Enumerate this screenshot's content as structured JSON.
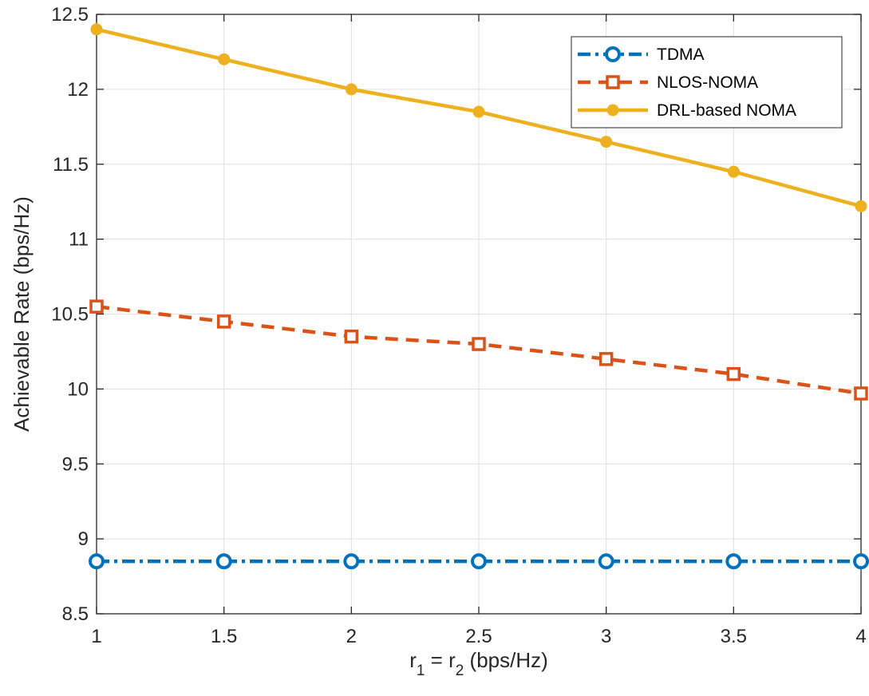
{
  "chart_data": {
    "type": "line",
    "x": [
      1,
      1.5,
      2,
      2.5,
      3,
      3.5,
      4
    ],
    "series": [
      {
        "name": "TDMA",
        "values": [
          8.85,
          8.85,
          8.85,
          8.85,
          8.85,
          8.85,
          8.85
        ],
        "color": "#0072BD",
        "line": "dashdot",
        "marker": "circle"
      },
      {
        "name": "NLOS-NOMA",
        "values": [
          10.55,
          10.45,
          10.35,
          10.3,
          10.2,
          10.1,
          9.97
        ],
        "color": "#D95319",
        "line": "dashed",
        "marker": "square"
      },
      {
        "name": "DRL-based NOMA",
        "values": [
          12.4,
          12.2,
          12.0,
          11.85,
          11.65,
          11.45,
          11.22
        ],
        "color": "#EDB120",
        "line": "solid",
        "marker": "filled-circle"
      }
    ],
    "xlabel": {
      "main": "r",
      "sub1": "1",
      "mid": " = r",
      "sub2": "2",
      "tail": " (bps/Hz)"
    },
    "ylabel": "Achievable Rate (bps/Hz)",
    "xlim": [
      1,
      4
    ],
    "ylim": [
      8.5,
      12.5
    ],
    "xticks": [
      "1",
      "1.5",
      "2",
      "2.5",
      "3",
      "3.5",
      "4"
    ],
    "yticks": [
      "8.5",
      "9",
      "9.5",
      "10",
      "10.5",
      "11",
      "11.5",
      "12",
      "12.5"
    ],
    "grid": true,
    "legend_position": "top-right"
  }
}
